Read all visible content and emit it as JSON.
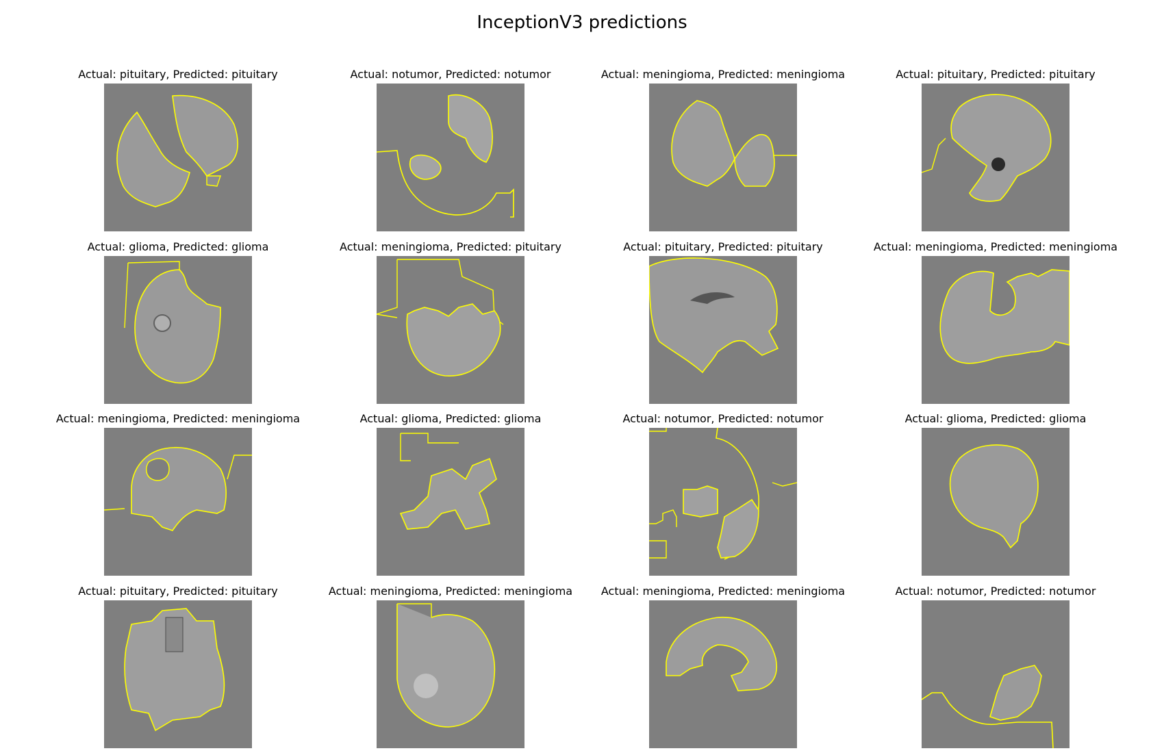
{
  "figure": {
    "title": "InceptionV3 predictions",
    "outline_color": "#ffff00",
    "background_gray": "#7f7f7f",
    "brain_gray": "#9a9a9a",
    "panels": [
      {
        "actual": "pituitary",
        "predicted": "pituitary",
        "caption": "Actual: pituitary, Predicted: pituitary"
      },
      {
        "actual": "notumor",
        "predicted": "notumor",
        "caption": "Actual: notumor, Predicted: notumor"
      },
      {
        "actual": "meningioma",
        "predicted": "meningioma",
        "caption": "Actual: meningioma, Predicted: meningioma"
      },
      {
        "actual": "pituitary",
        "predicted": "pituitary",
        "caption": "Actual: pituitary, Predicted: pituitary"
      },
      {
        "actual": "glioma",
        "predicted": "glioma",
        "caption": "Actual: glioma, Predicted: glioma"
      },
      {
        "actual": "meningioma",
        "predicted": "pituitary",
        "caption": "Actual: meningioma, Predicted: pituitary"
      },
      {
        "actual": "pituitary",
        "predicted": "pituitary",
        "caption": "Actual: pituitary, Predicted: pituitary"
      },
      {
        "actual": "meningioma",
        "predicted": "meningioma",
        "caption": "Actual: meningioma, Predicted: meningioma"
      },
      {
        "actual": "meningioma",
        "predicted": "meningioma",
        "caption": "Actual: meningioma, Predicted: meningioma"
      },
      {
        "actual": "glioma",
        "predicted": "glioma",
        "caption": "Actual: glioma, Predicted: glioma"
      },
      {
        "actual": "notumor",
        "predicted": "notumor",
        "caption": "Actual: notumor, Predicted: notumor"
      },
      {
        "actual": "glioma",
        "predicted": "glioma",
        "caption": "Actual: glioma, Predicted: glioma"
      },
      {
        "actual": "pituitary",
        "predicted": "pituitary",
        "caption": "Actual: pituitary, Predicted: pituitary"
      },
      {
        "actual": "meningioma",
        "predicted": "meningioma",
        "caption": "Actual: meningioma, Predicted: meningioma"
      },
      {
        "actual": "meningioma",
        "predicted": "meningioma",
        "caption": "Actual: meningioma, Predicted: meningioma"
      },
      {
        "actual": "notumor",
        "predicted": "notumor",
        "caption": "Actual: notumor, Predicted: notumor"
      }
    ]
  }
}
